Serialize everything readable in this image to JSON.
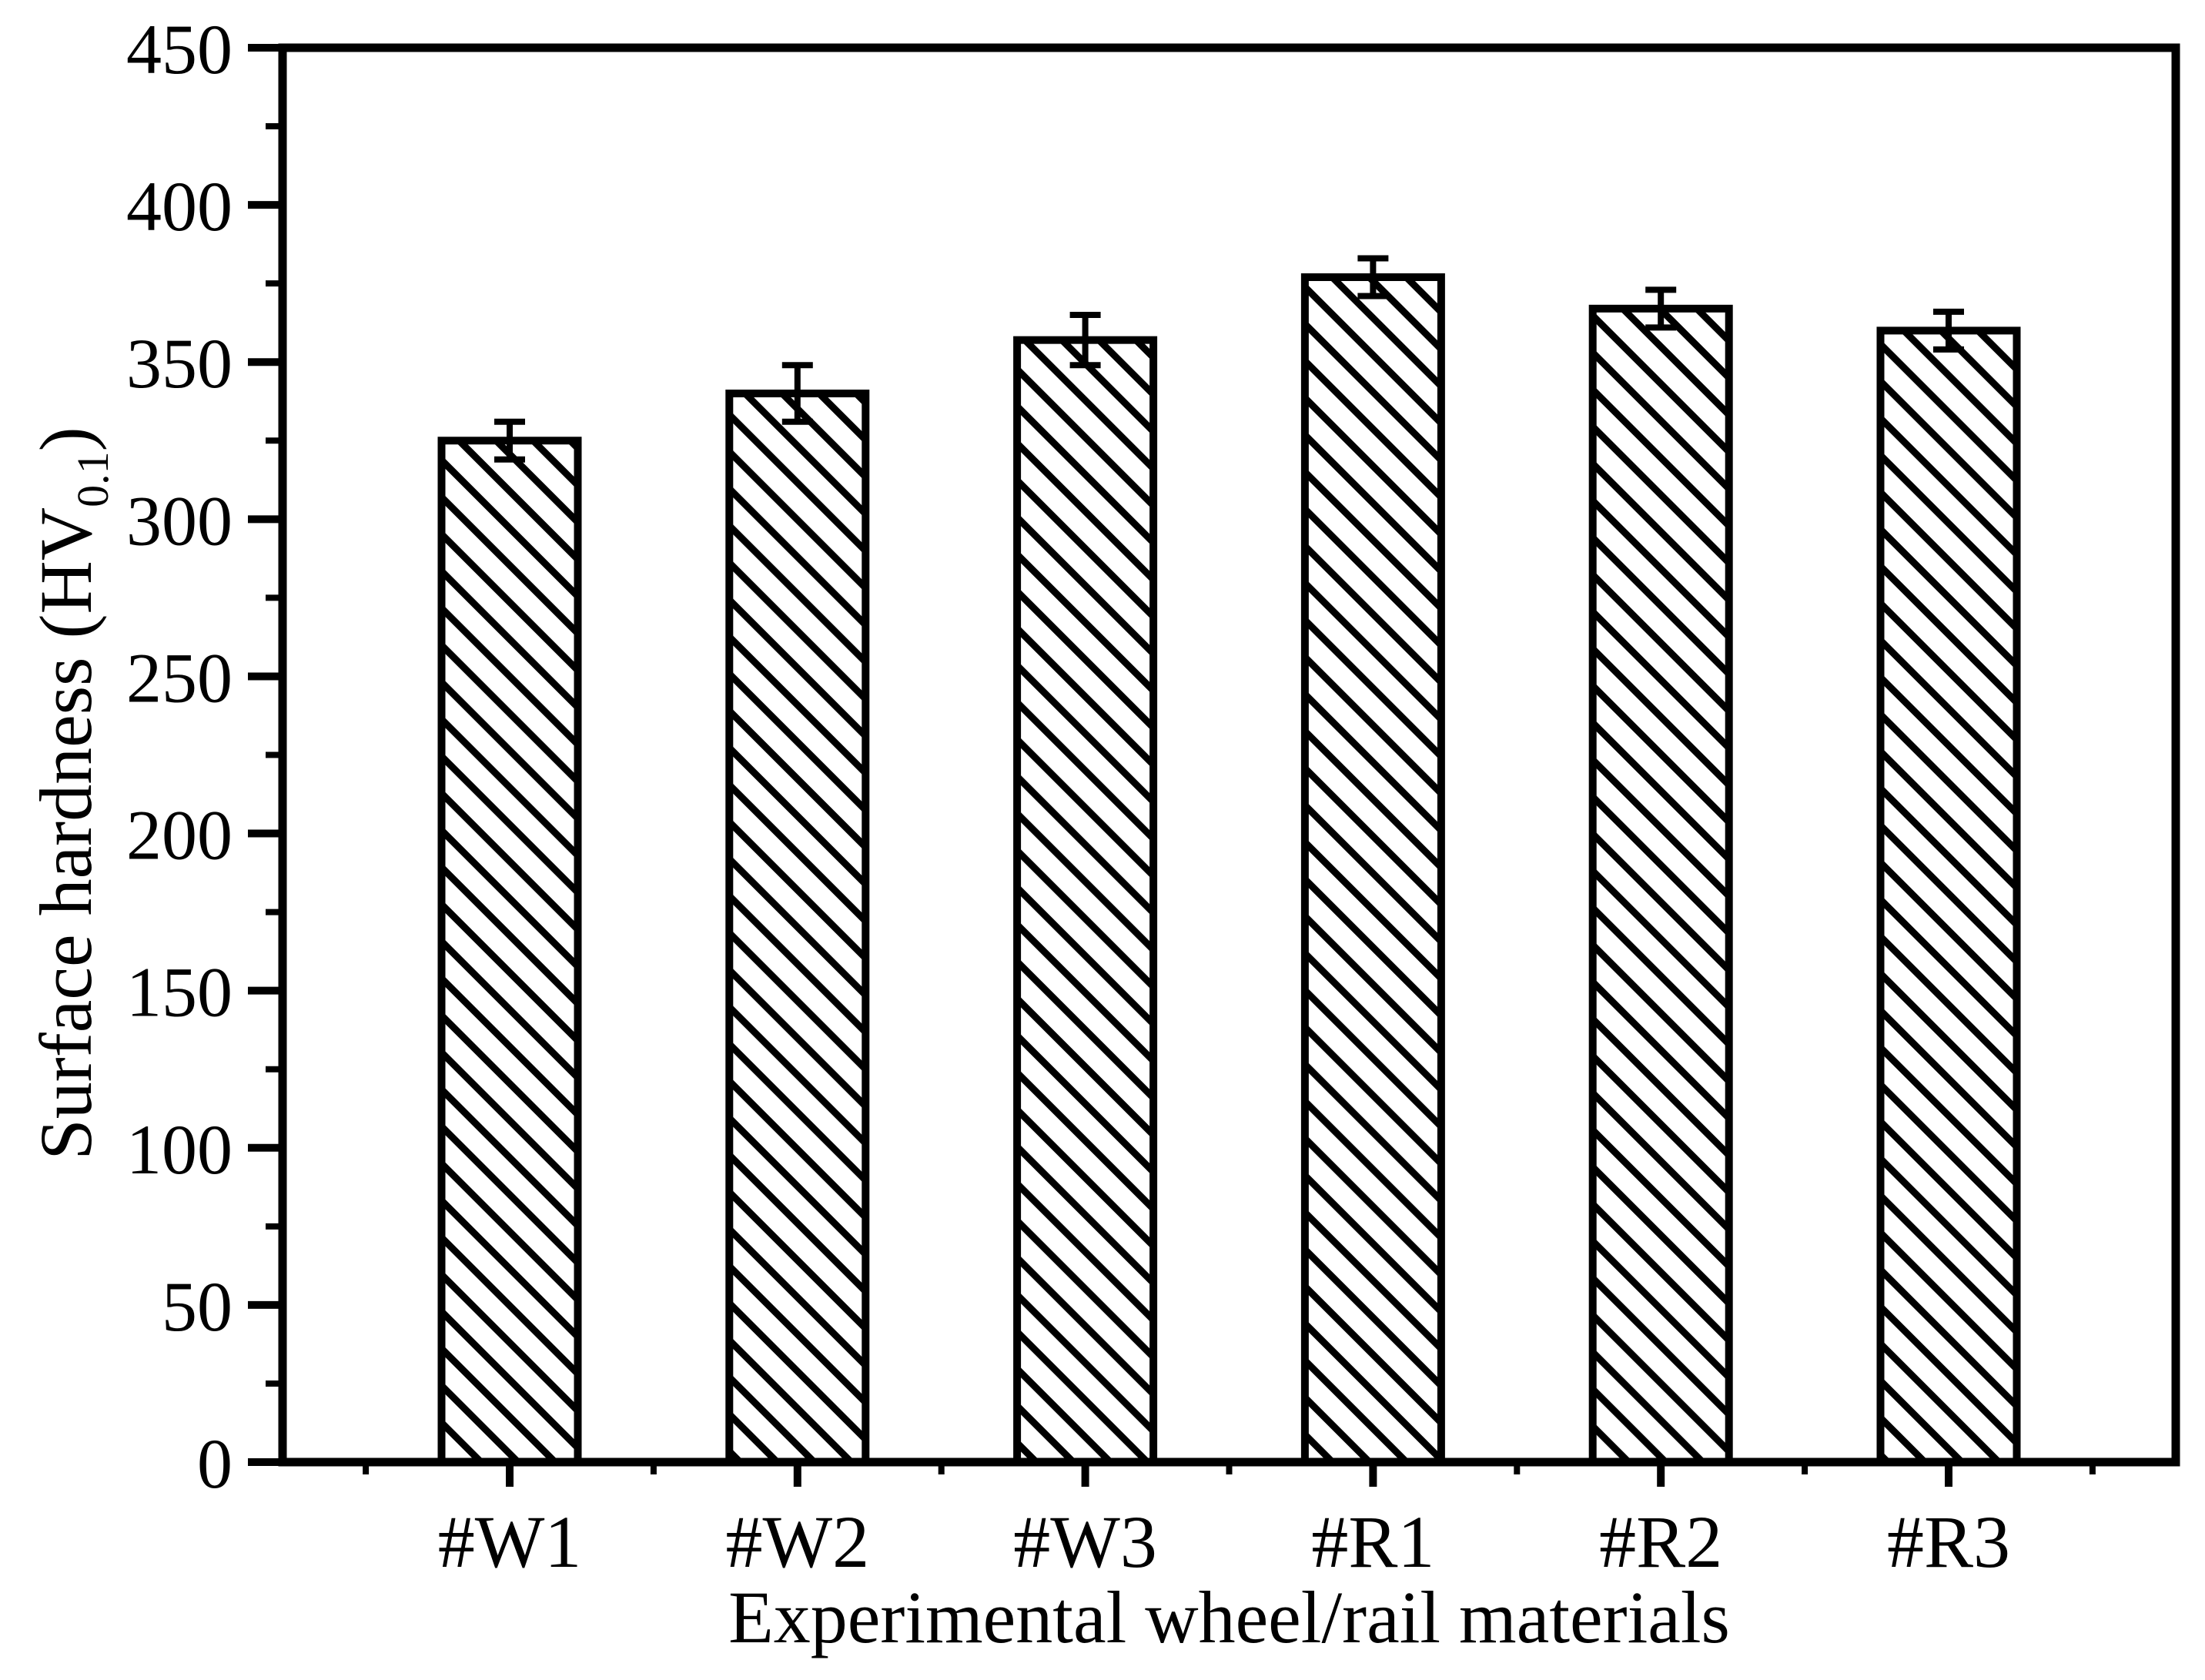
{
  "figure": {
    "background_color": "#ffffff",
    "ink_color": "#000000"
  },
  "chart_data": {
    "type": "bar",
    "title": "",
    "categories": [
      "#W1",
      "#W2",
      "#W3",
      "#R1",
      "#R2",
      "#R3"
    ],
    "values": [
      325,
      340,
      357,
      377,
      367,
      360
    ],
    "error_bars": [
      6,
      9,
      8,
      6,
      6,
      6
    ],
    "xlabel": "Experimental wheel/rail materials",
    "ylabel_text": "Surface hardness (HV",
    "ylabel_subscript": "0.1",
    "ylabel_close": ")",
    "ylim": [
      0,
      450
    ],
    "y_major_tick_step": 50,
    "y_minor_tick_step": 25,
    "y_tick_labels": [
      "0",
      "50",
      "100",
      "150",
      "200",
      "250",
      "300",
      "350",
      "400",
      "450"
    ],
    "x_minor_ticks_between_categories": true,
    "grid": false,
    "legend": null,
    "bar_fill": "diagonal-hatch",
    "hatch_angle_deg": 45,
    "bar_outline_color": "#000000",
    "plot_background": "#ffffff",
    "axes_box": true
  }
}
